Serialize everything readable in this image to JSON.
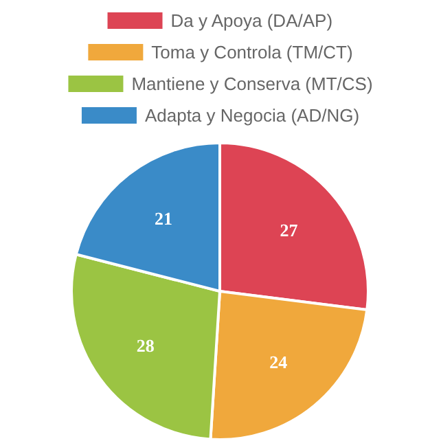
{
  "chart_data": {
    "type": "pie",
    "categories": [
      "Da y Apoya (DA/AP)",
      "Toma y Controla (TM/CT)",
      "Mantiene y Conserva (MT/CS)",
      "Adapta y Negocia (AD/NG)"
    ],
    "values": [
      27,
      24,
      28,
      21
    ],
    "colors": [
      "#dd4454",
      "#f0a83c",
      "#9bc443",
      "#3a8bc8"
    ],
    "legend": "top",
    "data_labels": true
  }
}
